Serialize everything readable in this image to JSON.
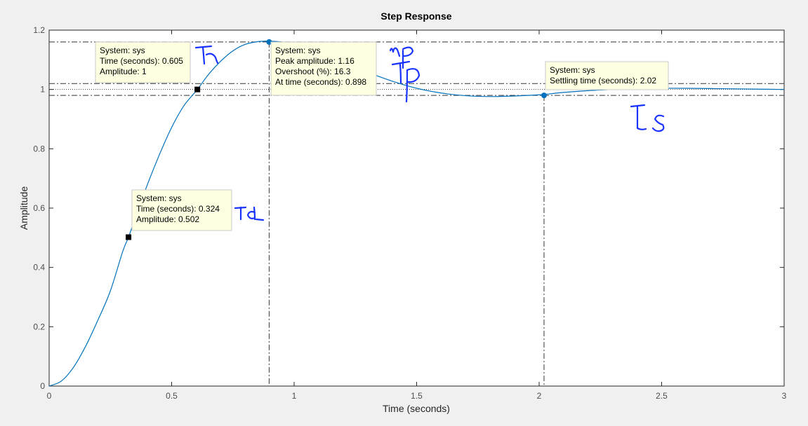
{
  "chart_data": {
    "type": "line",
    "title": "Step Response",
    "xlabel": "Time (seconds)",
    "ylabel": "Amplitude",
    "xlim": [
      0,
      3
    ],
    "ylim": [
      0,
      1.2
    ],
    "xticks": [
      0,
      0.5,
      1,
      1.5,
      2,
      2.5,
      3
    ],
    "xtick_labels": [
      "0",
      "0.5",
      "1",
      "1.5",
      "2",
      "2.5",
      "3"
    ],
    "yticks": [
      0,
      0.2,
      0.4,
      0.6,
      0.8,
      1,
      1.2
    ],
    "ytick_labels": [
      "0",
      "0.2",
      "0.4",
      "0.6",
      "0.8",
      "1",
      "1.2"
    ],
    "grid": false,
    "series": [
      {
        "color": "#0072bd",
        "x": [
          0,
          0.05,
          0.1,
          0.15,
          0.2,
          0.25,
          0.3,
          0.324,
          0.35,
          0.4,
          0.45,
          0.5,
          0.55,
          0.605,
          0.65,
          0.7,
          0.75,
          0.8,
          0.85,
          0.898,
          0.95,
          1.0,
          1.1,
          1.2,
          1.3,
          1.4,
          1.5,
          1.6,
          1.7,
          1.8,
          1.9,
          2.0,
          2.02,
          2.1,
          2.2,
          2.3,
          2.4,
          2.5,
          2.6,
          2.7,
          2.8,
          2.9,
          3.0
        ],
        "y": [
          0,
          0.017,
          0.064,
          0.136,
          0.224,
          0.321,
          0.453,
          0.502,
          0.563,
          0.677,
          0.78,
          0.872,
          0.945,
          1.0,
          1.05,
          1.095,
          1.13,
          1.152,
          1.161,
          1.163,
          1.16,
          1.152,
          1.125,
          1.092,
          1.058,
          1.028,
          1.004,
          0.988,
          0.979,
          0.976,
          0.978,
          0.982,
          0.983,
          0.99,
          0.996,
          1.0,
          1.003,
          1.004,
          1.004,
          1.003,
          1.002,
          1.001,
          1.0
        ]
      }
    ],
    "reference_lines": {
      "final_value": 1,
      "peak_amplitude": 1.16,
      "peak_time": 0.898,
      "settling_time": 2.02,
      "settling_band": [
        0.98,
        1.02
      ]
    },
    "markers": [
      {
        "kind": "square",
        "x": 0.324,
        "y": 0.502
      },
      {
        "kind": "square",
        "x": 0.605,
        "y": 1.0
      },
      {
        "kind": "dot",
        "x": 0.898,
        "y": 1.16
      },
      {
        "kind": "dot",
        "x": 2.02,
        "y": 0.98
      }
    ],
    "datatips": [
      {
        "lines": [
          "System: sys",
          "Time (seconds): 0.605",
          "Amplitude: 1"
        ]
      },
      {
        "lines": [
          "System: sys",
          "Peak amplitude: 1.16",
          "Overshoot (%): 16.3",
          "At time (seconds): 0.898"
        ]
      },
      {
        "lines": [
          "System: sys",
          "Settling time (seconds): 2.02"
        ]
      },
      {
        "lines": [
          "System: sys",
          "Time (seconds): 0.324",
          "Amplitude: 0.502"
        ]
      }
    ],
    "handwritten_annotations": [
      "Tr",
      "mP",
      "Tp",
      "Ts",
      "Td"
    ]
  }
}
